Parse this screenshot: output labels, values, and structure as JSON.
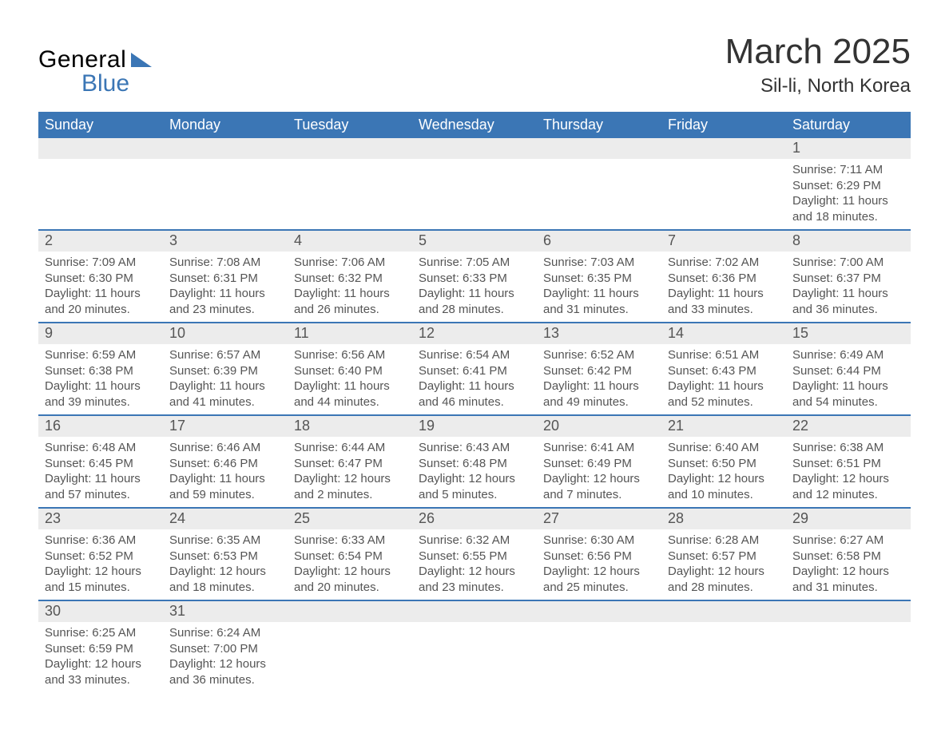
{
  "logo": {
    "general": "General",
    "blue": "Blue",
    "tri_color": "#3b76b5"
  },
  "title": "March 2025",
  "location": "Sil-li, North Korea",
  "colors": {
    "header_bg": "#3b76b5",
    "header_text": "#ffffff",
    "daynum_bg": "#ececec",
    "text": "#555555",
    "divider": "#3b76b5"
  },
  "weekdays": [
    "Sunday",
    "Monday",
    "Tuesday",
    "Wednesday",
    "Thursday",
    "Friday",
    "Saturday"
  ],
  "weeks": [
    [
      null,
      null,
      null,
      null,
      null,
      null,
      {
        "n": "1",
        "sr": "Sunrise: 7:11 AM",
        "ss": "Sunset: 6:29 PM",
        "d1": "Daylight: 11 hours",
        "d2": "and 18 minutes."
      }
    ],
    [
      {
        "n": "2",
        "sr": "Sunrise: 7:09 AM",
        "ss": "Sunset: 6:30 PM",
        "d1": "Daylight: 11 hours",
        "d2": "and 20 minutes."
      },
      {
        "n": "3",
        "sr": "Sunrise: 7:08 AM",
        "ss": "Sunset: 6:31 PM",
        "d1": "Daylight: 11 hours",
        "d2": "and 23 minutes."
      },
      {
        "n": "4",
        "sr": "Sunrise: 7:06 AM",
        "ss": "Sunset: 6:32 PM",
        "d1": "Daylight: 11 hours",
        "d2": "and 26 minutes."
      },
      {
        "n": "5",
        "sr": "Sunrise: 7:05 AM",
        "ss": "Sunset: 6:33 PM",
        "d1": "Daylight: 11 hours",
        "d2": "and 28 minutes."
      },
      {
        "n": "6",
        "sr": "Sunrise: 7:03 AM",
        "ss": "Sunset: 6:35 PM",
        "d1": "Daylight: 11 hours",
        "d2": "and 31 minutes."
      },
      {
        "n": "7",
        "sr": "Sunrise: 7:02 AM",
        "ss": "Sunset: 6:36 PM",
        "d1": "Daylight: 11 hours",
        "d2": "and 33 minutes."
      },
      {
        "n": "8",
        "sr": "Sunrise: 7:00 AM",
        "ss": "Sunset: 6:37 PM",
        "d1": "Daylight: 11 hours",
        "d2": "and 36 minutes."
      }
    ],
    [
      {
        "n": "9",
        "sr": "Sunrise: 6:59 AM",
        "ss": "Sunset: 6:38 PM",
        "d1": "Daylight: 11 hours",
        "d2": "and 39 minutes."
      },
      {
        "n": "10",
        "sr": "Sunrise: 6:57 AM",
        "ss": "Sunset: 6:39 PM",
        "d1": "Daylight: 11 hours",
        "d2": "and 41 minutes."
      },
      {
        "n": "11",
        "sr": "Sunrise: 6:56 AM",
        "ss": "Sunset: 6:40 PM",
        "d1": "Daylight: 11 hours",
        "d2": "and 44 minutes."
      },
      {
        "n": "12",
        "sr": "Sunrise: 6:54 AM",
        "ss": "Sunset: 6:41 PM",
        "d1": "Daylight: 11 hours",
        "d2": "and 46 minutes."
      },
      {
        "n": "13",
        "sr": "Sunrise: 6:52 AM",
        "ss": "Sunset: 6:42 PM",
        "d1": "Daylight: 11 hours",
        "d2": "and 49 minutes."
      },
      {
        "n": "14",
        "sr": "Sunrise: 6:51 AM",
        "ss": "Sunset: 6:43 PM",
        "d1": "Daylight: 11 hours",
        "d2": "and 52 minutes."
      },
      {
        "n": "15",
        "sr": "Sunrise: 6:49 AM",
        "ss": "Sunset: 6:44 PM",
        "d1": "Daylight: 11 hours",
        "d2": "and 54 minutes."
      }
    ],
    [
      {
        "n": "16",
        "sr": "Sunrise: 6:48 AM",
        "ss": "Sunset: 6:45 PM",
        "d1": "Daylight: 11 hours",
        "d2": "and 57 minutes."
      },
      {
        "n": "17",
        "sr": "Sunrise: 6:46 AM",
        "ss": "Sunset: 6:46 PM",
        "d1": "Daylight: 11 hours",
        "d2": "and 59 minutes."
      },
      {
        "n": "18",
        "sr": "Sunrise: 6:44 AM",
        "ss": "Sunset: 6:47 PM",
        "d1": "Daylight: 12 hours",
        "d2": "and 2 minutes."
      },
      {
        "n": "19",
        "sr": "Sunrise: 6:43 AM",
        "ss": "Sunset: 6:48 PM",
        "d1": "Daylight: 12 hours",
        "d2": "and 5 minutes."
      },
      {
        "n": "20",
        "sr": "Sunrise: 6:41 AM",
        "ss": "Sunset: 6:49 PM",
        "d1": "Daylight: 12 hours",
        "d2": "and 7 minutes."
      },
      {
        "n": "21",
        "sr": "Sunrise: 6:40 AM",
        "ss": "Sunset: 6:50 PM",
        "d1": "Daylight: 12 hours",
        "d2": "and 10 minutes."
      },
      {
        "n": "22",
        "sr": "Sunrise: 6:38 AM",
        "ss": "Sunset: 6:51 PM",
        "d1": "Daylight: 12 hours",
        "d2": "and 12 minutes."
      }
    ],
    [
      {
        "n": "23",
        "sr": "Sunrise: 6:36 AM",
        "ss": "Sunset: 6:52 PM",
        "d1": "Daylight: 12 hours",
        "d2": "and 15 minutes."
      },
      {
        "n": "24",
        "sr": "Sunrise: 6:35 AM",
        "ss": "Sunset: 6:53 PM",
        "d1": "Daylight: 12 hours",
        "d2": "and 18 minutes."
      },
      {
        "n": "25",
        "sr": "Sunrise: 6:33 AM",
        "ss": "Sunset: 6:54 PM",
        "d1": "Daylight: 12 hours",
        "d2": "and 20 minutes."
      },
      {
        "n": "26",
        "sr": "Sunrise: 6:32 AM",
        "ss": "Sunset: 6:55 PM",
        "d1": "Daylight: 12 hours",
        "d2": "and 23 minutes."
      },
      {
        "n": "27",
        "sr": "Sunrise: 6:30 AM",
        "ss": "Sunset: 6:56 PM",
        "d1": "Daylight: 12 hours",
        "d2": "and 25 minutes."
      },
      {
        "n": "28",
        "sr": "Sunrise: 6:28 AM",
        "ss": "Sunset: 6:57 PM",
        "d1": "Daylight: 12 hours",
        "d2": "and 28 minutes."
      },
      {
        "n": "29",
        "sr": "Sunrise: 6:27 AM",
        "ss": "Sunset: 6:58 PM",
        "d1": "Daylight: 12 hours",
        "d2": "and 31 minutes."
      }
    ],
    [
      {
        "n": "30",
        "sr": "Sunrise: 6:25 AM",
        "ss": "Sunset: 6:59 PM",
        "d1": "Daylight: 12 hours",
        "d2": "and 33 minutes."
      },
      {
        "n": "31",
        "sr": "Sunrise: 6:24 AM",
        "ss": "Sunset: 7:00 PM",
        "d1": "Daylight: 12 hours",
        "d2": "and 36 minutes."
      },
      null,
      null,
      null,
      null,
      null
    ]
  ]
}
